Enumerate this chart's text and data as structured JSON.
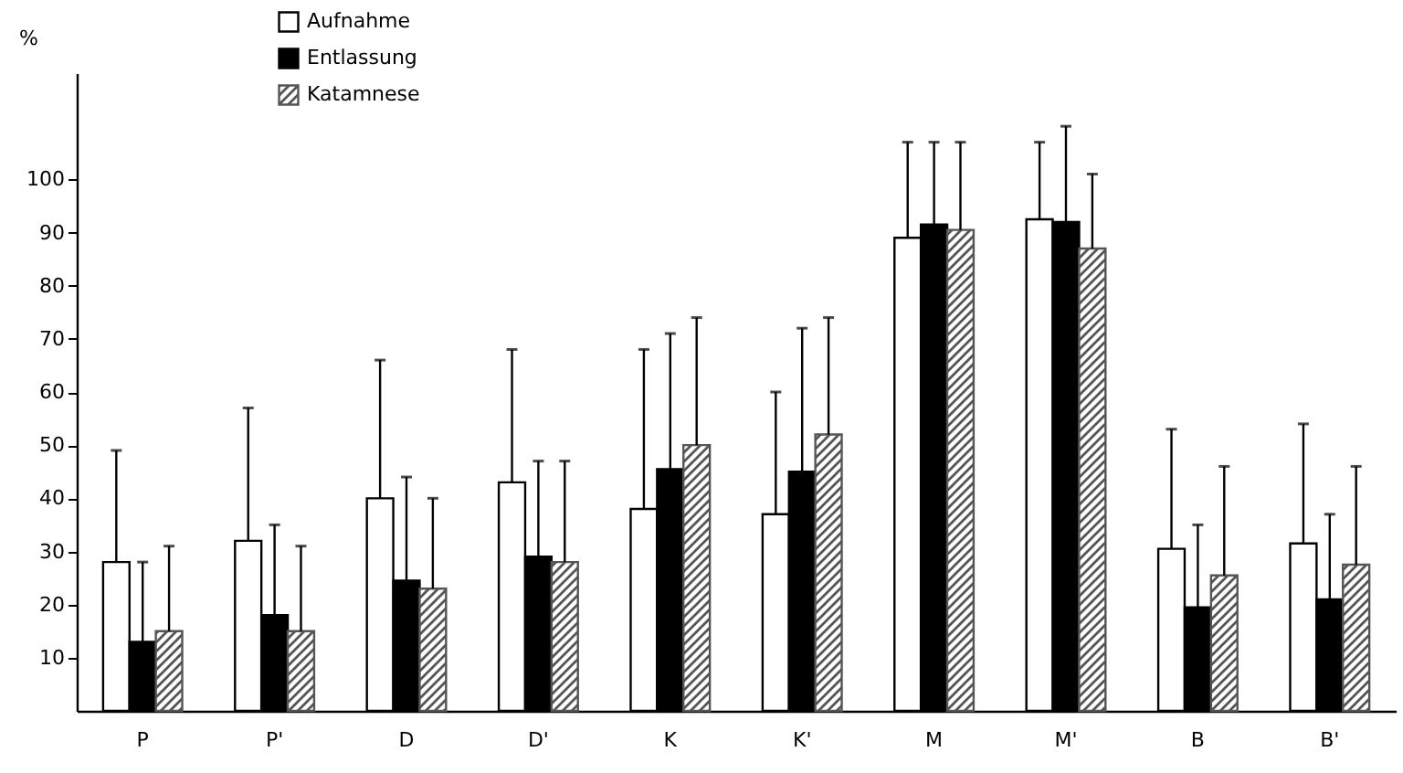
{
  "chart_data": {
    "type": "bar",
    "ylabel": "%",
    "categories": [
      "P",
      "P'",
      "D",
      "D'",
      "K",
      "K'",
      "M",
      "M'",
      "B",
      "B'"
    ],
    "series": [
      {
        "name": "Aufnahme",
        "color": "#ffffff",
        "values": [
          28,
          32,
          40,
          43,
          38,
          37,
          89,
          92.5,
          30.5,
          31.5
        ],
        "errors": [
          [
            28,
            49
          ],
          [
            32,
            57
          ],
          [
            40,
            66
          ],
          [
            43,
            68
          ],
          [
            38,
            68
          ],
          [
            37,
            60
          ],
          [
            89,
            107
          ],
          [
            92.5,
            107
          ],
          [
            30.5,
            53
          ],
          [
            31.5,
            54
          ]
        ]
      },
      {
        "name": "Entlassung",
        "color": "#000000",
        "values": [
          13,
          18,
          24.5,
          29,
          45.5,
          45,
          91.5,
          92,
          19.5,
          21
        ],
        "errors": [
          [
            13,
            28
          ],
          [
            18,
            35
          ],
          [
            24.5,
            44
          ],
          [
            29,
            47
          ],
          [
            45.5,
            71
          ],
          [
            45,
            72
          ],
          [
            91.5,
            107
          ],
          [
            92,
            110
          ],
          [
            19.5,
            35
          ],
          [
            21,
            37
          ]
        ]
      },
      {
        "name": "Katamnese",
        "color": "#555555",
        "values": [
          15,
          15,
          23,
          28,
          50,
          52,
          90.5,
          87,
          25.5,
          27.5
        ],
        "errors": [
          [
            15,
            31
          ],
          [
            15,
            31
          ],
          [
            23,
            40
          ],
          [
            28,
            47
          ],
          [
            50,
            74
          ],
          [
            52,
            74
          ],
          [
            90.5,
            107
          ],
          [
            87,
            101
          ],
          [
            25.5,
            46
          ],
          [
            27.5,
            46
          ]
        ]
      }
    ],
    "ylim": [
      0,
      120
    ],
    "yticks": [
      10,
      20,
      30,
      40,
      50,
      60,
      70,
      80,
      90,
      100
    ],
    "grid": false,
    "legend": "top left"
  }
}
